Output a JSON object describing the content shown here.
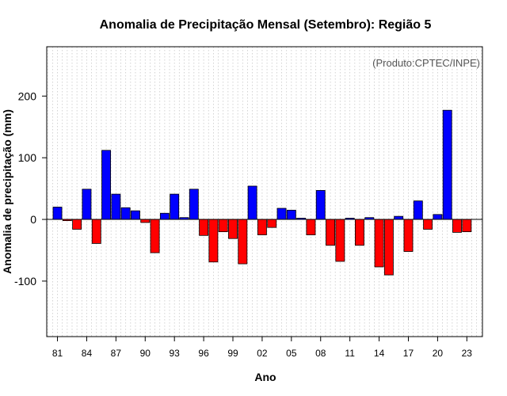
{
  "chart_data": {
    "type": "bar",
    "title": "Anomalia de Precipitação Mensal (Setembro): Região 5",
    "xlabel": "Ano",
    "ylabel": "Anomalia de precipitação (mm)",
    "credit": "(Produto:CPTEC/INPE)",
    "ylim": [
      -190,
      280
    ],
    "yticks": [
      -100,
      0,
      100,
      200
    ],
    "ytick_labels": [
      "-100",
      "0",
      "100",
      "200"
    ],
    "xlim": [
      1979.9,
      2024.6
    ],
    "positive_color": "#0000ff",
    "negative_color": "#ff0000",
    "grid": "vertical dotted",
    "xtick_years": [
      1981,
      1984,
      1987,
      1990,
      1993,
      1996,
      1999,
      2002,
      2005,
      2008,
      2011,
      2014,
      2017,
      2020,
      2023
    ],
    "xtick_labels": [
      "81",
      "84",
      "87",
      "90",
      "93",
      "96",
      "99",
      "02",
      "05",
      "08",
      "11",
      "14",
      "17",
      "20",
      "23"
    ],
    "years": [
      1981,
      1982,
      1983,
      1984,
      1985,
      1986,
      1987,
      1988,
      1989,
      1990,
      1991,
      1992,
      1993,
      1994,
      1995,
      1996,
      1997,
      1998,
      1999,
      2000,
      2001,
      2002,
      2003,
      2004,
      2005,
      2006,
      2007,
      2008,
      2009,
      2010,
      2011,
      2012,
      2013,
      2014,
      2015,
      2016,
      2017,
      2018,
      2019,
      2020,
      2021,
      2022,
      2023
    ],
    "values": [
      20,
      -2,
      -16,
      49,
      -39,
      112,
      41,
      19,
      14,
      -5,
      -54,
      10,
      41,
      3,
      49,
      -26,
      -69,
      -20,
      -31,
      -72,
      54,
      -25,
      -13,
      18,
      15,
      2,
      -25,
      47,
      -42,
      -68,
      2,
      -42,
      3,
      -77,
      -90,
      5,
      -52,
      30,
      -16,
      8,
      177,
      -21,
      -20
    ]
  }
}
